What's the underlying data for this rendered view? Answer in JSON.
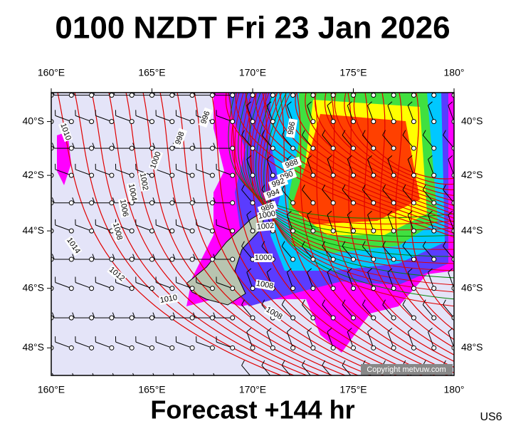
{
  "title": "0100 NZDT Fri 23 Jan 2026",
  "map": {
    "lon_range": [
      160,
      180
    ],
    "lat_range": [
      -38.9,
      -48.9
    ],
    "lon_ticks": [
      {
        "value": 160,
        "label": "160°E"
      },
      {
        "value": 165,
        "label": "165°E"
      },
      {
        "value": 170,
        "label": "170°E"
      },
      {
        "value": 175,
        "label": "175°E"
      },
      {
        "value": 180,
        "label": "180°"
      }
    ],
    "lat_ticks": [
      {
        "value": -40,
        "label": "40°S"
      },
      {
        "value": -42,
        "label": "42°S"
      },
      {
        "value": -44,
        "label": "44°S"
      },
      {
        "value": -46,
        "label": "46°S"
      },
      {
        "value": -48,
        "label": "48°S"
      }
    ],
    "isobar_labels": [
      1010,
      1002,
      1004,
      1006,
      1008,
      1014,
      1012,
      1010,
      998,
      996,
      1000,
      986,
      988,
      990,
      992,
      994,
      986,
      1000,
      1002,
      1000,
      1008,
      1008
    ]
  },
  "footer": "Forecast +144 hr",
  "copyright": "Copyright metvuw.com",
  "code": "US6"
}
